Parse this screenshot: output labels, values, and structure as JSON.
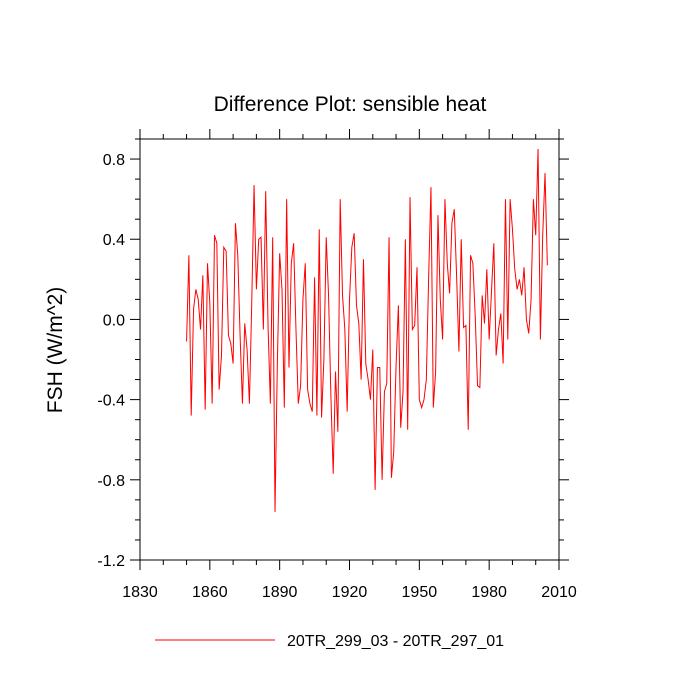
{
  "chart_data": {
    "type": "line",
    "title": "Difference Plot: sensible heat",
    "xlabel": "",
    "ylabel": "FSH  (W/m^2)",
    "xlim": [
      1830,
      2010
    ],
    "ylim": [
      -1.2,
      0.9
    ],
    "xticks": [
      1830,
      1860,
      1890,
      1920,
      1950,
      1980,
      2010
    ],
    "xtick_labels": [
      "1830",
      "1860",
      "1890",
      "1920",
      "1950",
      "1980",
      "2010"
    ],
    "yticks": [
      -1.2,
      -0.8,
      -0.4,
      0.0,
      0.4,
      0.8
    ],
    "ytick_labels": [
      "-1.2",
      "-0.8",
      "-0.4",
      "0.0",
      "0.4",
      "0.8"
    ],
    "grid": false,
    "legend_position": "bottom-center",
    "series": [
      {
        "name": "20TR_299_03 - 20TR_297_01",
        "color": "#ff0000",
        "x_start": 1850,
        "x_step": 1,
        "values": [
          -0.11,
          0.32,
          -0.48,
          0.05,
          0.15,
          0.1,
          -0.05,
          0.22,
          -0.45,
          0.28,
          0.08,
          -0.42,
          0.42,
          0.38,
          -0.35,
          -0.18,
          0.36,
          0.34,
          -0.08,
          -0.12,
          -0.22,
          0.48,
          0.32,
          -0.08,
          -0.42,
          -0.02,
          -0.15,
          -0.42,
          0.08,
          0.67,
          0.15,
          0.4,
          0.41,
          -0.05,
          0.64,
          -0.03,
          -0.42,
          0.41,
          -0.96,
          -0.22,
          0.33,
          0.15,
          -0.44,
          0.6,
          -0.24,
          0.28,
          0.38,
          -0.05,
          -0.42,
          -0.33,
          0.1,
          0.28,
          -0.35,
          -0.42,
          -0.46,
          0.21,
          -0.48,
          0.45,
          -0.49,
          -0.2,
          0.41,
          0.12,
          -0.38,
          -0.77,
          -0.26,
          -0.56,
          0.6,
          0.12,
          -0.05,
          -0.46,
          0.1,
          0.36,
          0.43,
          0.07,
          -0.02,
          -0.3,
          0.3,
          -0.22,
          -0.3,
          -0.4,
          -0.15,
          -0.85,
          -0.24,
          -0.24,
          -0.8,
          -0.36,
          -0.32,
          0.41,
          -0.79,
          -0.66,
          -0.23,
          0.07,
          -0.54,
          -0.36,
          0.4,
          -0.55,
          0.61,
          -0.05,
          -0.03,
          0.26,
          -0.4,
          -0.44,
          -0.4,
          -0.3,
          0.21,
          0.66,
          -0.44,
          -0.26,
          0.52,
          0.1,
          -0.1,
          0.6,
          0.28,
          0.13,
          0.48,
          0.55,
          0.22,
          -0.16,
          0.4,
          -0.04,
          -0.03,
          -0.55,
          0.32,
          0.28,
          0.02,
          -0.33,
          -0.34,
          0.12,
          -0.02,
          0.25,
          -0.1,
          0.14,
          0.38,
          -0.18,
          -0.05,
          0.03,
          -0.22,
          0.6,
          -0.1,
          0.6,
          0.45,
          0.25,
          0.15,
          0.2,
          0.12,
          0.26,
          0.0,
          -0.07,
          0.1,
          0.6,
          0.42,
          0.85,
          -0.1,
          0.42,
          0.73,
          0.27
        ]
      }
    ]
  }
}
